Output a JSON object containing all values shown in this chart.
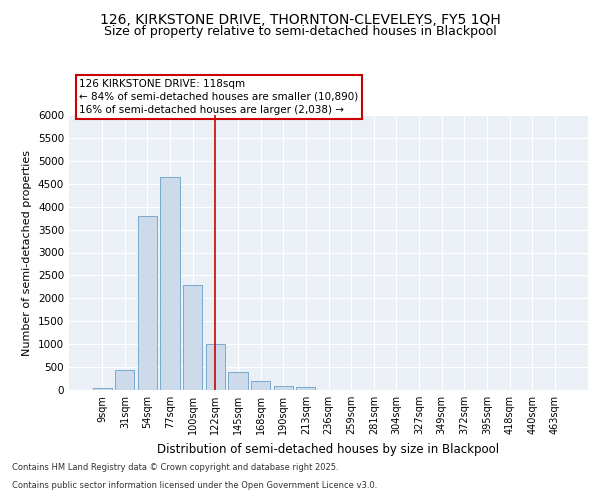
{
  "title": "126, KIRKSTONE DRIVE, THORNTON-CLEVELEYS, FY5 1QH",
  "subtitle": "Size of property relative to semi-detached houses in Blackpool",
  "xlabel": "Distribution of semi-detached houses by size in Blackpool",
  "ylabel": "Number of semi-detached properties",
  "footnote1": "Contains HM Land Registry data © Crown copyright and database right 2025.",
  "footnote2": "Contains public sector information licensed under the Open Government Licence v3.0.",
  "bar_labels": [
    "9sqm",
    "31sqm",
    "54sqm",
    "77sqm",
    "100sqm",
    "122sqm",
    "145sqm",
    "168sqm",
    "190sqm",
    "213sqm",
    "236sqm",
    "259sqm",
    "281sqm",
    "304sqm",
    "327sqm",
    "349sqm",
    "372sqm",
    "395sqm",
    "418sqm",
    "440sqm",
    "463sqm"
  ],
  "bar_values": [
    50,
    430,
    3800,
    4650,
    2300,
    1000,
    400,
    200,
    80,
    70,
    0,
    0,
    0,
    0,
    0,
    0,
    0,
    0,
    0,
    0,
    0
  ],
  "bar_color": "#ccdaea",
  "bar_edgecolor": "#7aaad0",
  "annotation_title": "126 KIRKSTONE DRIVE: 118sqm",
  "annotation_line1": "← 84% of semi-detached houses are smaller (10,890)",
  "annotation_line2": "16% of semi-detached houses are larger (2,038) →",
  "vline_x_index": 5,
  "vline_color": "#cc0000",
  "ylim": [
    0,
    6000
  ],
  "yticks": [
    0,
    500,
    1000,
    1500,
    2000,
    2500,
    3000,
    3500,
    4000,
    4500,
    5000,
    5500,
    6000
  ],
  "bg_color": "#eaf0f6",
  "grid_color": "#ffffff",
  "title_fontsize": 10,
  "subtitle_fontsize": 9,
  "annotation_fontsize": 7.5
}
